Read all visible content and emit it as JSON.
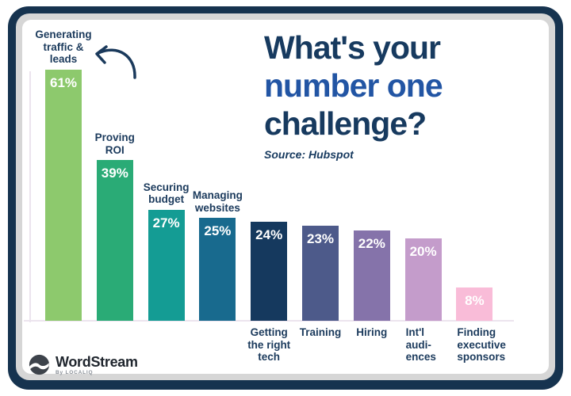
{
  "title": {
    "line1": "What's your",
    "line2": "number one",
    "line3": "challenge?",
    "source": "Source: Hubspot"
  },
  "logo": {
    "name": "WordStream",
    "byline": "By LOCALIQ"
  },
  "colors": {
    "frame_navy": "#16334f",
    "frame_gray": "#d6d6d6",
    "title_navy": "#173a5f",
    "title_blue": "#2255a4",
    "label_navy": "#1b3a5c",
    "axis_line": "#ece4ee",
    "arrow": "#1b3a5c",
    "value_text": "#ffffff"
  },
  "chart_data": {
    "type": "bar",
    "title": "What's your number one challenge?",
    "source": "Source: Hubspot",
    "categories": [
      "Generating traffic & leads",
      "Proving ROI",
      "Securing budget",
      "Managing websites",
      "Getting the right tech",
      "Training",
      "Hiring",
      "Int'l audiences",
      "Finding executive sponsors"
    ],
    "values": [
      61,
      39,
      27,
      25,
      24,
      23,
      22,
      20,
      8
    ],
    "value_labels": [
      "61%",
      "39%",
      "27%",
      "25%",
      "24%",
      "23%",
      "22%",
      "20%",
      "8%"
    ],
    "bar_colors": [
      "#8dc96d",
      "#2aab76",
      "#149c94",
      "#186a8e",
      "#15395e",
      "#4d5a8a",
      "#8573aa",
      "#c49ccb",
      "#f9bcd8"
    ],
    "label_display": [
      "Generating\ntraffic &\nleads",
      "Proving\nROI",
      "Securing\nbudget",
      "Managing\nwebsites",
      "Getting\nthe right\ntech",
      "Training",
      "Hiring",
      "Int'l\naudi-\nences",
      "Finding\nexecutive\nsponsors"
    ],
    "label_positions": [
      "above",
      "above",
      "above",
      "above",
      "below",
      "below",
      "below",
      "below",
      "below"
    ],
    "label_align": [
      "center",
      "center",
      "center",
      "center",
      "center",
      "center",
      "center",
      "left",
      "left"
    ],
    "slugs": [
      "generating-traffic-leads",
      "proving-roi",
      "securing-budget",
      "managing-websites",
      "getting-right-tech",
      "training",
      "hiring",
      "intl-audiences",
      "finding-executive-sponsors"
    ],
    "xlabel": "",
    "ylabel": "",
    "ylim": [
      0,
      65
    ],
    "grid": false,
    "legend": false
  }
}
